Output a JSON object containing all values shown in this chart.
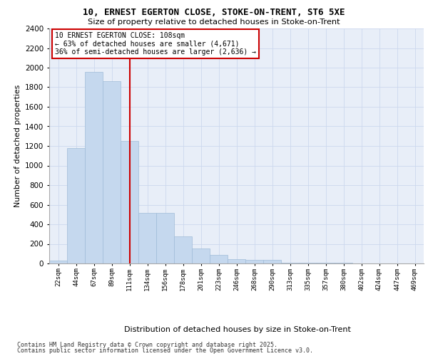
{
  "title1": "10, ERNEST EGERTON CLOSE, STOKE-ON-TRENT, ST6 5XE",
  "title2": "Size of property relative to detached houses in Stoke-on-Trent",
  "xlabel": "Distribution of detached houses by size in Stoke-on-Trent",
  "ylabel": "Number of detached properties",
  "categories": [
    "22sqm",
    "44sqm",
    "67sqm",
    "89sqm",
    "111sqm",
    "134sqm",
    "156sqm",
    "178sqm",
    "201sqm",
    "223sqm",
    "246sqm",
    "268sqm",
    "290sqm",
    "313sqm",
    "335sqm",
    "357sqm",
    "380sqm",
    "402sqm",
    "424sqm",
    "447sqm",
    "469sqm"
  ],
  "values": [
    30,
    1175,
    1960,
    1860,
    1250,
    520,
    520,
    275,
    155,
    88,
    45,
    35,
    35,
    8,
    8,
    4,
    4,
    2,
    2,
    2,
    2
  ],
  "bar_color": "#c5d8ee",
  "bar_edge_color": "#a0bcd8",
  "vline_x": 4.0,
  "vline_color": "#cc0000",
  "annotation_line1": "10 ERNEST EGERTON CLOSE: 108sqm",
  "annotation_line2": "← 63% of detached houses are smaller (4,671)",
  "annotation_line3": "36% of semi-detached houses are larger (2,636) →",
  "annotation_box_color": "#ffffff",
  "annotation_box_edge_color": "#cc0000",
  "ylim_max": 2400,
  "yticks": [
    0,
    200,
    400,
    600,
    800,
    1000,
    1200,
    1400,
    1600,
    1800,
    2000,
    2200,
    2400
  ],
  "grid_color": "#ccd8ee",
  "bg_color": "#e8eef8",
  "footer1": "Contains HM Land Registry data © Crown copyright and database right 2025.",
  "footer2": "Contains public sector information licensed under the Open Government Licence v3.0."
}
